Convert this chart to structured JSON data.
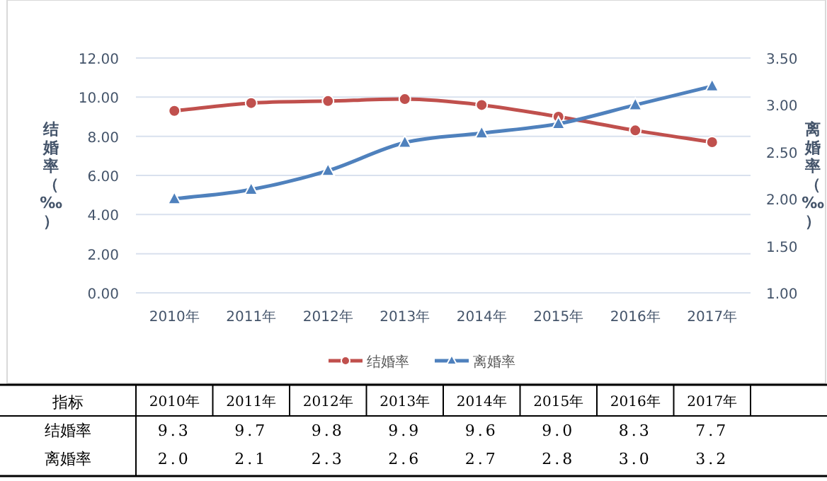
{
  "chart_data": {
    "type": "line",
    "categories": [
      "2010年",
      "2011年",
      "2012年",
      "2013年",
      "2014年",
      "2015年",
      "2016年",
      "2017年"
    ],
    "ylabel": "结婚率（‰）",
    "y2label": "离婚率（‰）",
    "ylim": [
      0,
      12
    ],
    "yticks": [
      {
        "value": 0,
        "label": "0.00"
      },
      {
        "value": 2,
        "label": "2.00"
      },
      {
        "value": 4,
        "label": "4.00"
      },
      {
        "value": 6,
        "label": "6.00"
      },
      {
        "value": 8,
        "label": "8.00"
      },
      {
        "value": 10,
        "label": "10.00"
      },
      {
        "value": 12,
        "label": "12.00"
      }
    ],
    "y2lim": [
      1,
      3.5
    ],
    "y2ticks": [
      {
        "value": 1,
        "label": "1.00"
      },
      {
        "value": 1.5,
        "label": "1.50"
      },
      {
        "value": 2,
        "label": "2.00"
      },
      {
        "value": 2.5,
        "label": "2.50"
      },
      {
        "value": 3,
        "label": "3.00"
      },
      {
        "value": 3.5,
        "label": "3.50"
      }
    ],
    "grid": "y",
    "legend": "bottom",
    "annotations": [
      "指标"
    ],
    "series": [
      {
        "name": "结婚率",
        "color": "#c0504d",
        "marker": "circle",
        "values": [
          9.3,
          9.7,
          9.8,
          9.9,
          9.6,
          9.0,
          8.3,
          7.7
        ],
        "value_labels": [
          "9.3",
          "9.7",
          "9.8",
          "9.9",
          "9.6",
          "9.0",
          "8.3",
          "7.7"
        ]
      },
      {
        "name": "离婚率",
        "color": "#4f81bd",
        "marker": "triangle",
        "axis": "y2",
        "values": [
          2.0,
          2.1,
          2.3,
          2.6,
          2.7,
          2.8,
          3.0,
          3.2
        ],
        "value_labels": [
          "2.0",
          "2.1",
          "2.3",
          "2.6",
          "2.7",
          "2.8",
          "3.0",
          "3.2"
        ]
      }
    ]
  }
}
